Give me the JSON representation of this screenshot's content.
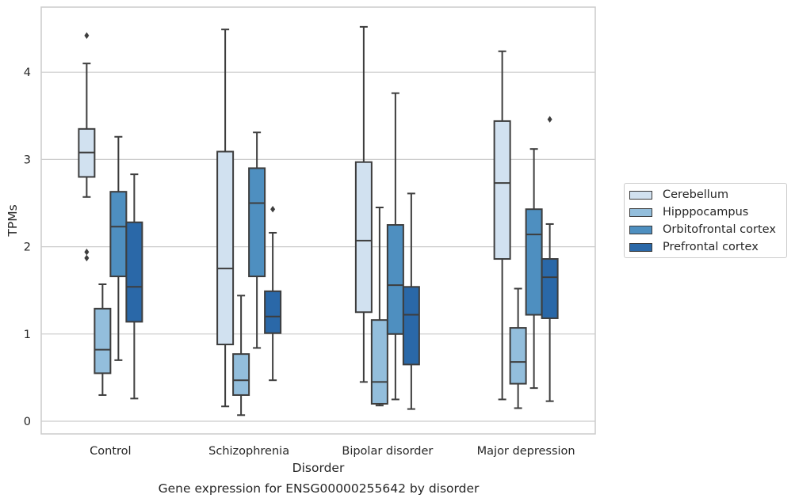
{
  "caption": "Gene expression for ENSG00000255642 by disorder",
  "chart_data": {
    "type": "boxplot",
    "xlabel": "Disorder",
    "ylabel": "TPMs",
    "ylim": [
      -0.14,
      4.75
    ],
    "yticks": [
      0,
      1,
      2,
      3,
      4
    ],
    "grid": "horizontal",
    "legend_position": "outside-right",
    "categories": [
      "Control",
      "Schizophrenia",
      "Bipolar disorder",
      "Major depression"
    ],
    "series": [
      {
        "name": "Cerebellum",
        "color": "#d1e1f0",
        "boxes": [
          {
            "whislo": 2.57,
            "q1": 2.8,
            "med": 3.08,
            "q3": 3.35,
            "whishi": 4.1,
            "fliers": [
              4.42,
              1.94,
              1.87
            ]
          },
          {
            "whislo": 0.17,
            "q1": 0.88,
            "med": 1.75,
            "q3": 3.09,
            "whishi": 4.49,
            "fliers": []
          },
          {
            "whislo": 0.45,
            "q1": 1.25,
            "med": 2.07,
            "q3": 2.97,
            "whishi": 4.52,
            "fliers": []
          },
          {
            "whislo": 0.25,
            "q1": 1.86,
            "med": 2.73,
            "q3": 3.44,
            "whishi": 4.24,
            "fliers": []
          }
        ]
      },
      {
        "name": "Hipppocampus",
        "color": "#93bedc",
        "boxes": [
          {
            "whislo": 0.3,
            "q1": 0.55,
            "med": 0.82,
            "q3": 1.29,
            "whishi": 1.57,
            "fliers": []
          },
          {
            "whislo": 0.07,
            "q1": 0.3,
            "med": 0.47,
            "q3": 0.77,
            "whishi": 1.44,
            "fliers": []
          },
          {
            "whislo": 0.18,
            "q1": 0.2,
            "med": 0.45,
            "q3": 1.16,
            "whishi": 2.45,
            "fliers": []
          },
          {
            "whislo": 0.15,
            "q1": 0.43,
            "med": 0.68,
            "q3": 1.07,
            "whishi": 1.52,
            "fliers": []
          }
        ]
      },
      {
        "name": "Orbitofrontal cortex",
        "color": "#4e8fc0",
        "boxes": [
          {
            "whislo": 0.7,
            "q1": 1.66,
            "med": 2.23,
            "q3": 2.63,
            "whishi": 3.26,
            "fliers": []
          },
          {
            "whislo": 0.84,
            "q1": 1.66,
            "med": 2.5,
            "q3": 2.9,
            "whishi": 3.31,
            "fliers": []
          },
          {
            "whislo": 0.25,
            "q1": 1.0,
            "med": 1.56,
            "q3": 2.25,
            "whishi": 3.76,
            "fliers": []
          },
          {
            "whislo": 0.38,
            "q1": 1.22,
            "med": 2.14,
            "q3": 2.43,
            "whishi": 3.12,
            "fliers": []
          }
        ]
      },
      {
        "name": "Prefrontal cortex",
        "color": "#2a68a8",
        "boxes": [
          {
            "whislo": 0.26,
            "q1": 1.14,
            "med": 1.54,
            "q3": 2.28,
            "whishi": 2.83,
            "fliers": []
          },
          {
            "whislo": 0.47,
            "q1": 1.01,
            "med": 1.2,
            "q3": 1.49,
            "whishi": 2.16,
            "fliers": [
              2.43
            ]
          },
          {
            "whislo": 0.14,
            "q1": 0.65,
            "med": 1.22,
            "q3": 1.54,
            "whishi": 2.61,
            "fliers": []
          },
          {
            "whislo": 0.23,
            "q1": 1.18,
            "med": 1.65,
            "q3": 1.86,
            "whishi": 2.26,
            "fliers": [
              3.46
            ]
          }
        ]
      }
    ]
  }
}
